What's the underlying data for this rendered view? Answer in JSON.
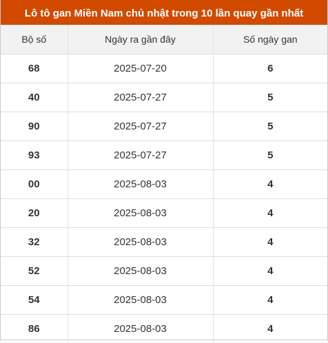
{
  "title": "Lô tô gan Miền Nam chủ nhật trong 10 lần quay gần nhất",
  "colors": {
    "header_bg": "#d14a00",
    "accent": "#d14a00"
  },
  "columns": [
    "Bộ số",
    "Ngày ra gần đây",
    "Số ngày gan"
  ],
  "rows": [
    {
      "number": "68",
      "date": "2025-07-20",
      "days": "6"
    },
    {
      "number": "40",
      "date": "2025-07-27",
      "days": "5"
    },
    {
      "number": "90",
      "date": "2025-07-27",
      "days": "5"
    },
    {
      "number": "93",
      "date": "2025-07-27",
      "days": "5"
    },
    {
      "number": "00",
      "date": "2025-08-03",
      "days": "4"
    },
    {
      "number": "20",
      "date": "2025-08-03",
      "days": "4"
    },
    {
      "number": "32",
      "date": "2025-08-03",
      "days": "4"
    },
    {
      "number": "52",
      "date": "2025-08-03",
      "days": "4"
    },
    {
      "number": "54",
      "date": "2025-08-03",
      "days": "4"
    },
    {
      "number": "86",
      "date": "2025-08-03",
      "days": "4"
    }
  ]
}
